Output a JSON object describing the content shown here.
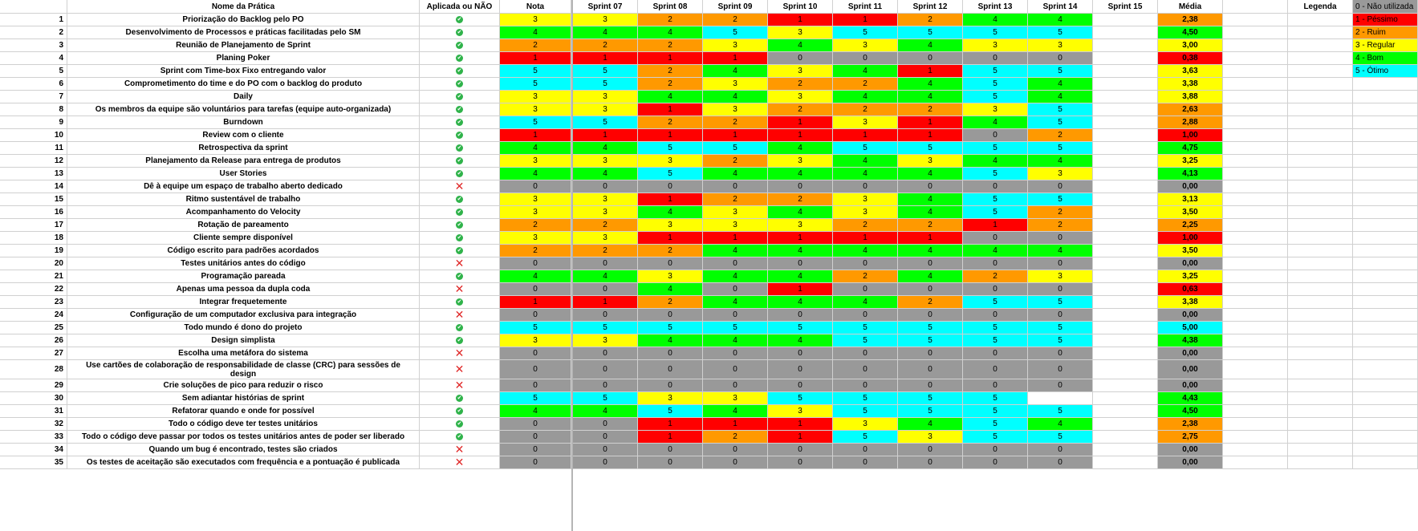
{
  "headers": {
    "name": "Nome da Prática",
    "applied": "Aplicada ou NÃO",
    "sprints": [
      "Nota",
      "Sprint 07",
      "Sprint 08",
      "Sprint 09",
      "Sprint 10",
      "Sprint 11",
      "Sprint 12",
      "Sprint 13",
      "Sprint 14",
      "Sprint 15"
    ],
    "avg": "Média",
    "legend": "Legenda"
  },
  "legend": [
    {
      "label": "0 - Não utilizada",
      "color": "#999999"
    },
    {
      "label": "1 - Péssimo",
      "color": "#ff0000"
    },
    {
      "label": "2 - Ruim",
      "color": "#ff9900"
    },
    {
      "label": "3 - Regular",
      "color": "#ffff00"
    },
    {
      "label": "4 - Bom",
      "color": "#00ff00"
    },
    {
      "label": "5 - Ótimo",
      "color": "#00ffff"
    }
  ],
  "icons": {
    "applied": "check-circle-icon",
    "not_applied": "x-mark-icon"
  },
  "rows": [
    {
      "n": "1",
      "name": "Priorização do Backlog pelo PO",
      "ok": true,
      "v": [
        "3",
        "3",
        "2",
        "2",
        "1",
        "1",
        "2",
        "4",
        "4",
        ""
      ],
      "avg": "2,38",
      "avgc": "2"
    },
    {
      "n": "2",
      "name": "Desenvolvimento de Processos e práticas facilitadas pelo SM",
      "ok": true,
      "v": [
        "4",
        "4",
        "4",
        "5",
        "3",
        "5",
        "5",
        "5",
        "5",
        ""
      ],
      "avg": "4,50",
      "avgc": "4"
    },
    {
      "n": "3",
      "name": "Reunião de Planejamento de Sprint",
      "ok": true,
      "v": [
        "2",
        "2",
        "2",
        "3",
        "4",
        "3",
        "4",
        "3",
        "3",
        ""
      ],
      "avg": "3,00",
      "avgc": "3"
    },
    {
      "n": "4",
      "name": "Planing Poker",
      "ok": true,
      "v": [
        "1",
        "1",
        "1",
        "1",
        "0",
        "0",
        "0",
        "0",
        "0",
        ""
      ],
      "avg": "0,38",
      "avgc": "1"
    },
    {
      "n": "5",
      "name": "Sprint com Time-box Fixo entregando valor",
      "ok": true,
      "v": [
        "5",
        "5",
        "2",
        "4",
        "3",
        "4",
        "1",
        "5",
        "5",
        ""
      ],
      "avg": "3,63",
      "avgc": "3"
    },
    {
      "n": "6",
      "name": "Comprometimento do time e do PO com o backlog do produto",
      "ok": true,
      "v": [
        "5",
        "5",
        "2",
        "3",
        "2",
        "2",
        "4",
        "5",
        "4",
        ""
      ],
      "avg": "3,38",
      "avgc": "3"
    },
    {
      "n": "7",
      "name": "Daily",
      "ok": true,
      "v": [
        "3",
        "3",
        "4",
        "4",
        "3",
        "4",
        "4",
        "5",
        "4",
        ""
      ],
      "avg": "3,88",
      "avgc": "3"
    },
    {
      "n": "8",
      "name": "Os membros da equipe são voluntários para tarefas (equipe auto-organizada)",
      "ok": true,
      "v": [
        "3",
        "3",
        "1",
        "3",
        "2",
        "2",
        "2",
        "3",
        "5",
        ""
      ],
      "avg": "2,63",
      "avgc": "2"
    },
    {
      "n": "9",
      "name": "Burndown",
      "ok": true,
      "v": [
        "5",
        "5",
        "2",
        "2",
        "1",
        "3",
        "1",
        "4",
        "5",
        ""
      ],
      "avg": "2,88",
      "avgc": "2"
    },
    {
      "n": "10",
      "name": "Review com o cliente",
      "ok": true,
      "v": [
        "1",
        "1",
        "1",
        "1",
        "1",
        "1",
        "1",
        "0",
        "2",
        ""
      ],
      "avg": "1,00",
      "avgc": "1"
    },
    {
      "n": "11",
      "name": "Retrospectiva da sprint",
      "ok": true,
      "v": [
        "4",
        "4",
        "5",
        "5",
        "4",
        "5",
        "5",
        "5",
        "5",
        ""
      ],
      "avg": "4,75",
      "avgc": "4"
    },
    {
      "n": "12",
      "name": "Planejamento da Release para entrega de produtos",
      "ok": true,
      "v": [
        "3",
        "3",
        "3",
        "2",
        "3",
        "4",
        "3",
        "4",
        "4",
        ""
      ],
      "avg": "3,25",
      "avgc": "3"
    },
    {
      "n": "13",
      "name": "User Stories",
      "ok": true,
      "v": [
        "4",
        "4",
        "5",
        "4",
        "4",
        "4",
        "4",
        "5",
        "3",
        ""
      ],
      "avg": "4,13",
      "avgc": "4"
    },
    {
      "n": "14",
      "name": "Dê à equipe um espaço de trabalho aberto dedicado",
      "ok": false,
      "v": [
        "0",
        "0",
        "0",
        "0",
        "0",
        "0",
        "0",
        "0",
        "0",
        ""
      ],
      "avg": "0,00",
      "avgc": "0"
    },
    {
      "n": "15",
      "name": "Ritmo sustentável de trabalho",
      "ok": true,
      "v": [
        "3",
        "3",
        "1",
        "2",
        "2",
        "3",
        "4",
        "5",
        "5",
        ""
      ],
      "avg": "3,13",
      "avgc": "3"
    },
    {
      "n": "16",
      "name": "Acompanhamento do Velocity",
      "ok": true,
      "v": [
        "3",
        "3",
        "4",
        "3",
        "4",
        "3",
        "4",
        "5",
        "2",
        ""
      ],
      "avg": "3,50",
      "avgc": "3"
    },
    {
      "n": "17",
      "name": "Rotação de pareamento",
      "ok": true,
      "v": [
        "2",
        "2",
        "3",
        "3",
        "3",
        "2",
        "2",
        "1",
        "2",
        ""
      ],
      "avg": "2,25",
      "avgc": "2"
    },
    {
      "n": "18",
      "name": "Cliente sempre disponível",
      "ok": true,
      "v": [
        "3",
        "3",
        "1",
        "1",
        "1",
        "1",
        "1",
        "0",
        "0",
        ""
      ],
      "avg": "1,00",
      "avgc": "1"
    },
    {
      "n": "19",
      "name": "Código escrito para padrões acordados",
      "ok": true,
      "v": [
        "2",
        "2",
        "2",
        "4",
        "4",
        "4",
        "4",
        "4",
        "4",
        ""
      ],
      "avg": "3,50",
      "avgc": "3"
    },
    {
      "n": "20",
      "name": "Testes unitários antes do código",
      "ok": false,
      "v": [
        "0",
        "0",
        "0",
        "0",
        "0",
        "0",
        "0",
        "0",
        "0",
        ""
      ],
      "avg": "0,00",
      "avgc": "0"
    },
    {
      "n": "21",
      "name": "Programação pareada",
      "ok": true,
      "v": [
        "4",
        "4",
        "3",
        "4",
        "4",
        "2",
        "4",
        "2",
        "3",
        ""
      ],
      "avg": "3,25",
      "avgc": "3"
    },
    {
      "n": "22",
      "name": "Apenas uma pessoa da dupla coda",
      "ok": false,
      "v": [
        "0",
        "0",
        "4",
        "0",
        "1",
        "0",
        "0",
        "0",
        "0",
        ""
      ],
      "avg": "0,63",
      "avgc": "1"
    },
    {
      "n": "23",
      "name": "Integrar frequetemente",
      "ok": true,
      "v": [
        "1",
        "1",
        "2",
        "4",
        "4",
        "4",
        "2",
        "5",
        "5",
        ""
      ],
      "avg": "3,38",
      "avgc": "3"
    },
    {
      "n": "24",
      "name": "Configuração de um computador exclusiva para integração",
      "ok": false,
      "v": [
        "0",
        "0",
        "0",
        "0",
        "0",
        "0",
        "0",
        "0",
        "0",
        ""
      ],
      "avg": "0,00",
      "avgc": "0"
    },
    {
      "n": "25",
      "name": "Todo mundo é dono do projeto",
      "ok": true,
      "v": [
        "5",
        "5",
        "5",
        "5",
        "5",
        "5",
        "5",
        "5",
        "5",
        ""
      ],
      "avg": "5,00",
      "avgc": "5"
    },
    {
      "n": "26",
      "name": "Design simplista",
      "ok": true,
      "v": [
        "3",
        "3",
        "4",
        "4",
        "4",
        "5",
        "5",
        "5",
        "5",
        ""
      ],
      "avg": "4,38",
      "avgc": "4"
    },
    {
      "n": "27",
      "name": "Escolha uma metáfora do sistema",
      "ok": false,
      "v": [
        "0",
        "0",
        "0",
        "0",
        "0",
        "0",
        "0",
        "0",
        "0",
        ""
      ],
      "avg": "0,00",
      "avgc": "0"
    },
    {
      "n": "28",
      "name": "Use cartões de colaboração de responsabilidade de classe (CRC) para sessões de design",
      "ok": false,
      "v": [
        "0",
        "0",
        "0",
        "0",
        "0",
        "0",
        "0",
        "0",
        "0",
        ""
      ],
      "avg": "0,00",
      "avgc": "0"
    },
    {
      "n": "29",
      "name": "Crie soluções de pico para reduzir o risco",
      "ok": false,
      "v": [
        "0",
        "0",
        "0",
        "0",
        "0",
        "0",
        "0",
        "0",
        "0",
        ""
      ],
      "avg": "0,00",
      "avgc": "0"
    },
    {
      "n": "30",
      "name": "Sem adiantar histórias de sprint",
      "ok": true,
      "v": [
        "5",
        "5",
        "3",
        "3",
        "5",
        "5",
        "5",
        "5",
        "",
        ""
      ],
      "avg": "4,43",
      "avgc": "4"
    },
    {
      "n": "31",
      "name": "Refatorar quando e onde for possível",
      "ok": true,
      "v": [
        "4",
        "4",
        "5",
        "4",
        "3",
        "5",
        "5",
        "5",
        "5",
        ""
      ],
      "avg": "4,50",
      "avgc": "4"
    },
    {
      "n": "32",
      "name": "Todo o código deve ter testes unitários",
      "ok": true,
      "v": [
        "0",
        "0",
        "1",
        "1",
        "1",
        "3",
        "4",
        "5",
        "4",
        ""
      ],
      "avg": "2,38",
      "avgc": "2"
    },
    {
      "n": "33",
      "name": "Todo o código deve passar por todos os testes unitários antes de poder ser liberado",
      "ok": true,
      "v": [
        "0",
        "0",
        "1",
        "2",
        "1",
        "5",
        "3",
        "5",
        "5",
        ""
      ],
      "avg": "2,75",
      "avgc": "2"
    },
    {
      "n": "34",
      "name": "Quando um bug é encontrado, testes são criados",
      "ok": false,
      "v": [
        "0",
        "0",
        "0",
        "0",
        "0",
        "0",
        "0",
        "0",
        "0",
        ""
      ],
      "avg": "0,00",
      "avgc": "0"
    },
    {
      "n": "35",
      "name": "Os testes de aceitação são executados com frequência e a pontuação é publicada",
      "ok": false,
      "v": [
        "0",
        "0",
        "0",
        "0",
        "0",
        "0",
        "0",
        "0",
        "0",
        ""
      ],
      "avg": "0,00",
      "avgc": "0"
    }
  ]
}
